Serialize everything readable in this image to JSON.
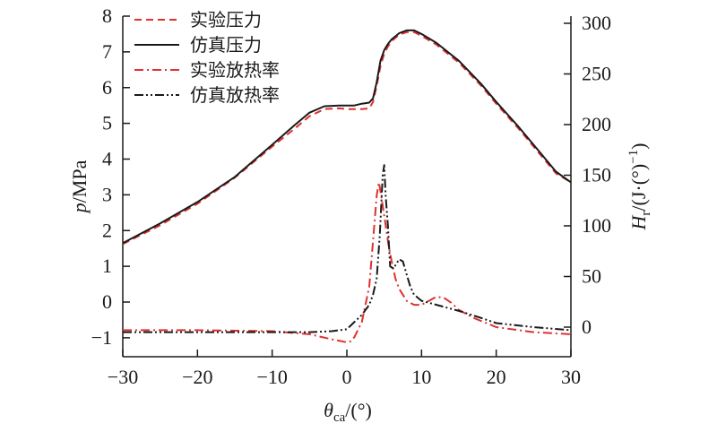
{
  "chart_data": {
    "type": "line",
    "xlabel": {
      "main": "θ",
      "sub": "ca",
      "unit": "/(°)"
    },
    "ylabel_left": {
      "main": "p",
      "unit": "/MPa"
    },
    "ylabel_right": {
      "main": "H",
      "sub": "r",
      "unit": "/(J·(°)",
      "sup": "−1",
      "close": ")"
    },
    "xlim": [
      -30,
      30
    ],
    "ylim_left": [
      -1.5,
      8
    ],
    "ylim_right": [
      -30,
      300
    ],
    "x_ticks": [
      -30,
      -20,
      -10,
      0,
      10,
      20,
      30
    ],
    "x_tick_labels": [
      "−30",
      "−20",
      "−10",
      "0",
      "10",
      "20",
      "30"
    ],
    "y_left_ticks": [
      -1,
      0,
      1,
      2,
      3,
      4,
      5,
      6,
      7,
      8
    ],
    "y_left_tick_labels": [
      "−1",
      "0",
      "1",
      "2",
      "3",
      "4",
      "5",
      "6",
      "7",
      "8"
    ],
    "y_right_ticks": [
      0,
      50,
      100,
      150,
      200,
      250,
      300
    ],
    "y_right_tick_labels": [
      "0",
      "50",
      "100",
      "150",
      "200",
      "250",
      "300"
    ],
    "legend_position": "top-left",
    "grid": false,
    "series": [
      {
        "name": "实验压力",
        "axis": "left",
        "color": "#e03030",
        "style": "dashed",
        "x": [
          -30,
          -25,
          -20,
          -15,
          -10,
          -7,
          -5,
          -3,
          -1,
          0,
          1,
          2,
          3,
          3.5,
          4,
          4.5,
          5,
          5.5,
          6,
          7,
          8,
          9,
          10,
          12,
          15,
          18,
          20,
          23,
          26,
          28,
          30
        ],
        "y": [
          1.62,
          2.15,
          2.75,
          3.48,
          4.35,
          4.85,
          5.2,
          5.4,
          5.42,
          5.4,
          5.4,
          5.4,
          5.42,
          5.6,
          6.05,
          6.6,
          6.95,
          7.15,
          7.3,
          7.48,
          7.55,
          7.55,
          7.45,
          7.2,
          6.7,
          6.05,
          5.55,
          4.85,
          4.1,
          3.6,
          3.35
        ]
      },
      {
        "name": "仿真压力",
        "axis": "left",
        "color": "#1a1a1a",
        "style": "solid",
        "x": [
          -30,
          -25,
          -20,
          -15,
          -10,
          -7,
          -5,
          -3,
          -1,
          0,
          1,
          2,
          3,
          3.5,
          4,
          4.5,
          5,
          5.5,
          6,
          7,
          8,
          9,
          10,
          12,
          15,
          18,
          20,
          23,
          26,
          28,
          30
        ],
        "y": [
          1.65,
          2.2,
          2.8,
          3.5,
          4.4,
          4.95,
          5.3,
          5.48,
          5.5,
          5.5,
          5.5,
          5.55,
          5.58,
          5.7,
          6.15,
          6.75,
          7.05,
          7.22,
          7.35,
          7.52,
          7.6,
          7.6,
          7.5,
          7.25,
          6.75,
          6.1,
          5.6,
          4.9,
          4.15,
          3.65,
          3.35
        ]
      },
      {
        "name": "实验放热率",
        "axis": "right",
        "color": "#e03030",
        "style": "dashdot",
        "x": [
          -30,
          -20,
          -10,
          -5,
          -2,
          0,
          0.5,
          1,
          2,
          3,
          3.5,
          4,
          4.3,
          4.6,
          5,
          5.3,
          5.6,
          6,
          6.5,
          7,
          8,
          9,
          10,
          11,
          12,
          13,
          14,
          15,
          17,
          20,
          25,
          30
        ],
        "y": [
          -3,
          -3,
          -4,
          -7,
          -12,
          -15,
          -14,
          -10,
          5,
          40,
          85,
          130,
          143,
          130,
          110,
          95,
          80,
          65,
          48,
          38,
          26,
          22,
          22,
          26,
          30,
          29,
          24,
          17,
          9,
          0,
          -5,
          -7
        ]
      },
      {
        "name": "仿真放热率",
        "axis": "right",
        "color": "#1a1a1a",
        "style": "dashdotdot",
        "x": [
          -30,
          -20,
          -10,
          -5,
          -2,
          0,
          1,
          2,
          3,
          3.5,
          4,
          4.4,
          4.8,
          5,
          5.2,
          5.5,
          5.8,
          6.2,
          6.6,
          7,
          7.5,
          8,
          8.5,
          9,
          10,
          12,
          15,
          18,
          20,
          25,
          30
        ],
        "y": [
          -5,
          -5,
          -5,
          -5,
          -4,
          -2,
          5,
          12,
          22,
          32,
          48,
          90,
          150,
          160,
          130,
          100,
          60,
          58,
          62,
          67,
          65,
          52,
          40,
          32,
          26,
          22,
          16,
          9,
          4,
          0,
          -3
        ]
      }
    ]
  }
}
